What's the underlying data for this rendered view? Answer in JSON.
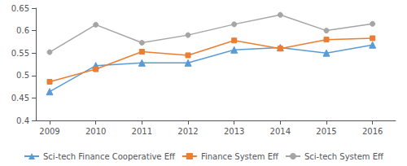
{
  "chart_data": {
    "type": "line",
    "x": [
      2009,
      2010,
      2011,
      2012,
      2013,
      2014,
      2015,
      2016
    ],
    "series": [
      {
        "name": "Sci-tech Finance Cooperative Eff",
        "color": "#5B9BD5",
        "marker": "triangle",
        "values": [
          0.464,
          0.522,
          0.528,
          0.528,
          0.557,
          0.562,
          0.55,
          0.568
        ]
      },
      {
        "name": "Finance System Eff",
        "color": "#ED7D31",
        "marker": "square",
        "values": [
          0.486,
          0.514,
          0.553,
          0.545,
          0.578,
          0.56,
          0.58,
          0.583
        ]
      },
      {
        "name": "Sci-tech System Eff",
        "color": "#A5A5A5",
        "marker": "circle",
        "values": [
          0.552,
          0.613,
          0.573,
          0.59,
          0.614,
          0.635,
          0.6,
          0.615
        ]
      }
    ],
    "xlim": [
      2008.7,
      2016.5
    ],
    "xticks": [
      2009,
      2010,
      2011,
      2012,
      2013,
      2014,
      2015,
      2016
    ],
    "ylim": [
      0.4,
      0.65
    ],
    "yticks": [
      0.4,
      0.45,
      0.5,
      0.55,
      0.6,
      0.65
    ],
    "grid": false,
    "legend": "bottom"
  }
}
